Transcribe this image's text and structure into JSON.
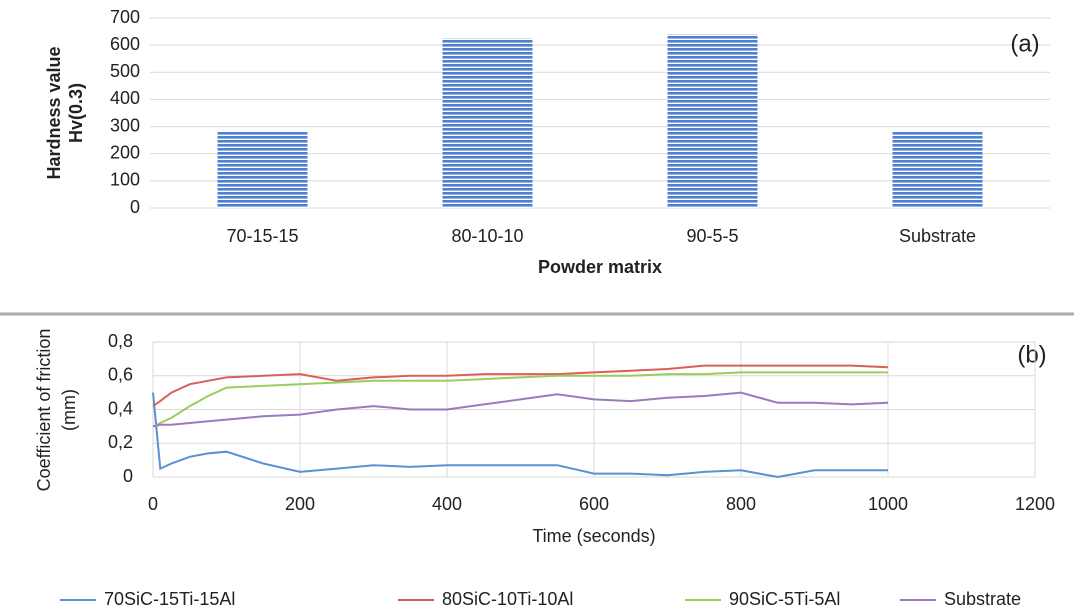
{
  "chart_data": [
    {
      "type": "bar",
      "ylabel_lines": [
        "Hardness value",
        "Hv(0.3)"
      ],
      "xlabel": "Powder matrix",
      "annotation": "(a)",
      "categories": [
        "70-15-15",
        "80-10-10",
        "90-5-5",
        "Substrate"
      ],
      "values": [
        285,
        625,
        640,
        285
      ],
      "color": "#4f7fcf",
      "ylim": [
        0,
        700
      ],
      "yticks": [
        0,
        100,
        200,
        300,
        400,
        500,
        600,
        700
      ],
      "grid": true
    },
    {
      "type": "line",
      "ylabel_lines": [
        "Coefficient of friction",
        "(mm)"
      ],
      "xlabel": "Time (seconds)",
      "annotation": "(b)",
      "x": [
        0,
        10,
        25,
        50,
        75,
        100,
        150,
        200,
        250,
        300,
        350,
        400,
        450,
        500,
        550,
        600,
        650,
        700,
        750,
        800,
        850,
        900,
        950,
        1000
      ],
      "series": [
        {
          "name": "70SiC-15Ti-15Al",
          "color": "#5b8fd6",
          "values": [
            0.5,
            0.05,
            0.08,
            0.12,
            0.14,
            0.15,
            0.08,
            0.03,
            0.05,
            0.07,
            0.06,
            0.07,
            0.07,
            0.07,
            0.07,
            0.02,
            0.02,
            0.01,
            0.03,
            0.04,
            0.0,
            0.04,
            0.04,
            0.04
          ]
        },
        {
          "name": "80SiC-10Ti-10Al",
          "color": "#d9605a",
          "values": [
            0.42,
            0.45,
            0.5,
            0.55,
            0.57,
            0.59,
            0.6,
            0.61,
            0.57,
            0.59,
            0.6,
            0.6,
            0.61,
            0.61,
            0.61,
            0.62,
            0.63,
            0.64,
            0.66,
            0.66,
            0.66,
            0.66,
            0.66,
            0.65
          ]
        },
        {
          "name": "90SiC-5Ti-5Al",
          "color": "#9ccc5c",
          "values": [
            0.3,
            0.32,
            0.35,
            0.42,
            0.48,
            0.53,
            0.54,
            0.55,
            0.56,
            0.57,
            0.57,
            0.57,
            0.58,
            0.59,
            0.6,
            0.6,
            0.6,
            0.61,
            0.61,
            0.62,
            0.62,
            0.62,
            0.62,
            0.62
          ]
        },
        {
          "name": "Substrate",
          "color": "#9a7bbd",
          "values": [
            0.3,
            0.31,
            0.31,
            0.32,
            0.33,
            0.34,
            0.36,
            0.37,
            0.4,
            0.42,
            0.4,
            0.4,
            0.43,
            0.46,
            0.49,
            0.46,
            0.45,
            0.47,
            0.48,
            0.5,
            0.44,
            0.44,
            0.43,
            0.44
          ]
        }
      ],
      "xlim": [
        0,
        1200
      ],
      "xticks": [
        0,
        200,
        400,
        600,
        800,
        1000,
        1200
      ],
      "ylim": [
        0,
        0.8
      ],
      "yticks": [
        0,
        {
          "value": 0.2,
          "label": "0,2"
        },
        {
          "value": 0.4,
          "label": "0,4"
        },
        {
          "value": 0.6,
          "label": "0,6"
        },
        {
          "value": 0.8,
          "label": "0,8"
        }
      ],
      "grid": true,
      "legend": "bottom"
    }
  ]
}
